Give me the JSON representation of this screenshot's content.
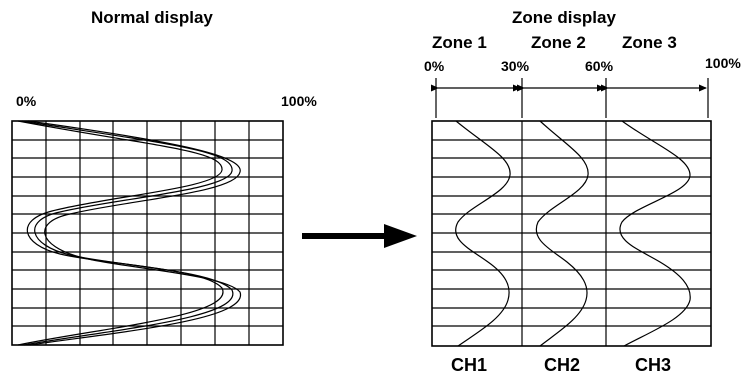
{
  "normal": {
    "title": "Normal display",
    "scale_left": "0%",
    "scale_right": "100%"
  },
  "zone": {
    "title": "Zone display",
    "zones": [
      "Zone 1",
      "Zone 2",
      "Zone 3"
    ],
    "scale": [
      "0%",
      "30%",
      "60%",
      "100%"
    ],
    "channels": [
      "CH1",
      "CH2",
      "CH3"
    ]
  },
  "colors": {
    "line": "#000000",
    "background": "#ffffff"
  }
}
